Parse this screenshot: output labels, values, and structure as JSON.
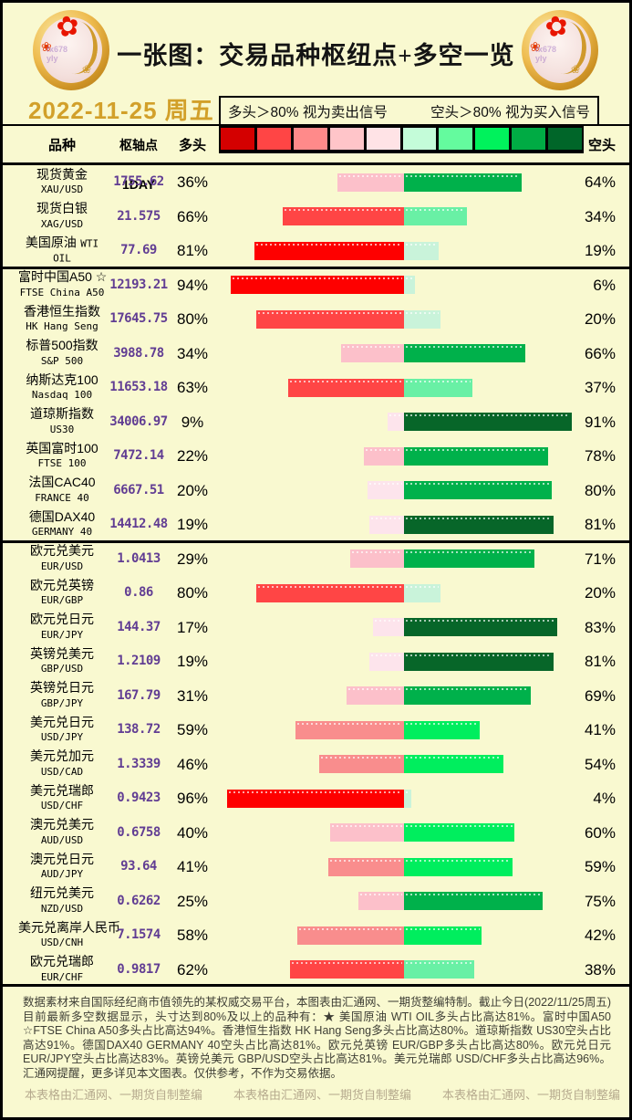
{
  "page": {
    "background": "#f9f9d0",
    "border_color": "#000000"
  },
  "header": {
    "title": "一张图：交易品种枢纽点+多空一览",
    "date": "2022-11-25 周五",
    "date_color": "#d2a02a",
    "logo": {
      "watermark_line1": "fx678",
      "watermark_line2": "yly"
    }
  },
  "legend": {
    "long_rule": "多头＞80% 视为卖出信号",
    "short_rule": "空头＞80% 视为买入信号"
  },
  "columns": {
    "instrument": "品种",
    "pivot": "枢轴点1DAY",
    "long": "多头",
    "short": "空头"
  },
  "scale_colors": [
    "#d40000",
    "#ff4545",
    "#ff8a8a",
    "#ffc5c9",
    "#ffe3e6",
    "#c4fcd9",
    "#64fb9e",
    "#00f25c",
    "#00ab44",
    "#006629"
  ],
  "bar_colors": {
    "long_buckets_low_to_high": [
      "#fde4ec",
      "#fcc0ca",
      "#f98d8d",
      "#ff4545",
      "#fe0000"
    ],
    "short_buckets_low_to_high": [
      "#c9f3da",
      "#69f0a5",
      "#00ee5e",
      "#00b14b",
      "#076629"
    ],
    "pivot_text": "#613d93"
  },
  "rows": [
    {
      "cn": "现货黄金",
      "en": "XAU/USD",
      "pivot": "1755.62",
      "long": 36,
      "short": 64
    },
    {
      "cn": "现货白银",
      "en": "XAG/USD",
      "pivot": "21.575",
      "long": 66,
      "short": 34
    },
    {
      "cn": "美国原油",
      "en": "WTI OIL",
      "pivot": "77.69",
      "long": 81,
      "short": 19
    },
    {
      "cn": "富时中国A50 ☆",
      "en": "FTSE China A50",
      "pivot": "12193.21",
      "long": 94,
      "short": 6
    },
    {
      "cn": "香港恒生指数",
      "en": "HK Hang Seng",
      "pivot": "17645.75",
      "long": 80,
      "short": 20
    },
    {
      "cn": "标普500指数",
      "en": "S&P 500",
      "pivot": "3988.78",
      "long": 34,
      "short": 66
    },
    {
      "cn": "纳斯达克100",
      "en": "Nasdaq 100",
      "pivot": "11653.18",
      "long": 63,
      "short": 37
    },
    {
      "cn": "道琼斯指数",
      "en": "US30",
      "pivot": "34006.97",
      "long": 9,
      "short": 91
    },
    {
      "cn": "英国富时100",
      "en": "FTSE 100",
      "pivot": "7472.14",
      "long": 22,
      "short": 78
    },
    {
      "cn": "法国CAC40",
      "en": "FRANCE 40",
      "pivot": "6667.51",
      "long": 20,
      "short": 80
    },
    {
      "cn": "德国DAX40",
      "en": "GERMANY 40",
      "pivot": "14412.48",
      "long": 19,
      "short": 81
    },
    {
      "cn": "欧元兑美元",
      "en": "EUR/USD",
      "pivot": "1.0413",
      "long": 29,
      "short": 71
    },
    {
      "cn": "欧元兑英镑",
      "en": "EUR/GBP",
      "pivot": "0.86",
      "long": 80,
      "short": 20
    },
    {
      "cn": "欧元兑日元",
      "en": "EUR/JPY",
      "pivot": "144.37",
      "long": 17,
      "short": 83
    },
    {
      "cn": "英镑兑美元",
      "en": "GBP/USD",
      "pivot": "1.2109",
      "long": 19,
      "short": 81
    },
    {
      "cn": "英镑兑日元",
      "en": "GBP/JPY",
      "pivot": "167.79",
      "long": 31,
      "short": 69
    },
    {
      "cn": "美元兑日元",
      "en": "USD/JPY",
      "pivot": "138.72",
      "long": 59,
      "short": 41
    },
    {
      "cn": "美元兑加元",
      "en": "USD/CAD",
      "pivot": "1.3339",
      "long": 46,
      "short": 54
    },
    {
      "cn": "美元兑瑞郎",
      "en": "USD/CHF",
      "pivot": "0.9423",
      "long": 96,
      "short": 4
    },
    {
      "cn": "澳元兑美元",
      "en": "AUD/USD",
      "pivot": "0.6758",
      "long": 40,
      "short": 60
    },
    {
      "cn": "澳元兑日元",
      "en": "AUD/JPY",
      "pivot": "93.64",
      "long": 41,
      "short": 59
    },
    {
      "cn": "纽元兑美元",
      "en": "NZD/USD",
      "pivot": "0.6262",
      "long": 25,
      "short": 75
    },
    {
      "cn": "美元兑离岸人民币",
      "en": "USD/CNH",
      "pivot": "7.1574",
      "long": 58,
      "short": 42
    },
    {
      "cn": "欧元兑瑞郎",
      "en": "EUR/CHF",
      "pivot": "0.9817",
      "long": 62,
      "short": 38
    }
  ],
  "chart_data": {
    "type": "bar",
    "orientation": "horizontal-diverging",
    "title": "一张图：交易品种枢纽点+多空一览",
    "categories": [
      "现货黄金 XAU/USD",
      "现货白银 XAG/USD",
      "美国原油 WTI OIL",
      "富时中国A50 FTSE China A50",
      "香港恒生指数 HK Hang Seng",
      "标普500指数 S&P 500",
      "纳斯达克100 Nasdaq 100",
      "道琼斯指数 US30",
      "英国富时100 FTSE 100",
      "法国CAC40 FRANCE 40",
      "德国DAX40 GERMANY 40",
      "欧元兑美元 EUR/USD",
      "欧元兑英镑 EUR/GBP",
      "欧元兑日元 EUR/JPY",
      "英镑兑美元 GBP/USD",
      "英镑兑日元 GBP/JPY",
      "美元兑日元 USD/JPY",
      "美元兑加元 USD/CAD",
      "美元兑瑞郎 USD/CHF",
      "澳元兑美元 AUD/USD",
      "澳元兑日元 AUD/JPY",
      "纽元兑美元 NZD/USD",
      "美元兑离岸人民币 USD/CNH",
      "欧元兑瑞郎 EUR/CHF"
    ],
    "series": [
      {
        "name": "多头",
        "values": [
          36,
          66,
          81,
          94,
          80,
          34,
          63,
          9,
          22,
          20,
          19,
          29,
          80,
          17,
          19,
          31,
          59,
          46,
          96,
          40,
          41,
          25,
          58,
          62
        ]
      },
      {
        "name": "空头",
        "values": [
          64,
          34,
          19,
          6,
          20,
          66,
          37,
          91,
          78,
          80,
          81,
          71,
          20,
          83,
          81,
          69,
          41,
          54,
          4,
          60,
          59,
          75,
          42,
          38
        ]
      },
      {
        "name": "枢轴点1DAY",
        "values": [
          1755.62,
          21.575,
          77.69,
          12193.21,
          17645.75,
          3988.78,
          11653.18,
          34006.97,
          7472.14,
          6667.51,
          14412.48,
          1.0413,
          0.86,
          144.37,
          1.2109,
          167.79,
          138.72,
          1.3339,
          0.9423,
          0.6758,
          93.64,
          0.6262,
          7.1574,
          0.9817
        ]
      }
    ],
    "xlim": [
      -100,
      100
    ],
    "legend_position": "top",
    "grid": false
  },
  "footer": {
    "note": "数据素材来自国际经纪商市值领先的某权威交易平台，本图表由汇通网、一期货整编特制。截止今日(2022/11/25周五)目前最新多空数据显示，头寸达到80%及以上的品种有：★ 美国原油 WTI OIL多头占比高达81%。富时中国A50 ☆FTSE China A50多头占比高达94%。香港恒生指数 HK Hang Seng多头占比高达80%。道琼斯指数 US30空头占比高达91%。德国DAX40 GERMANY 40空头占比高达81%。欧元兑英镑 EUR/GBP多头占比高达80%。欧元兑日元 EUR/JPY空头占比高达83%。英镑兑美元 GBP/USD空头占比高达81%。美元兑瑞郎 USD/CHF多头占比高达96%。汇通网提醒，更多详见本文图表。仅供参考，不作为交易依据。",
    "credits": [
      "本表格由汇通网、一期货自制整编",
      "本表格由汇通网、一期货自制整编",
      "本表格由汇通网、一期货自制整编"
    ],
    "credit_color": "#b6aa8e"
  }
}
